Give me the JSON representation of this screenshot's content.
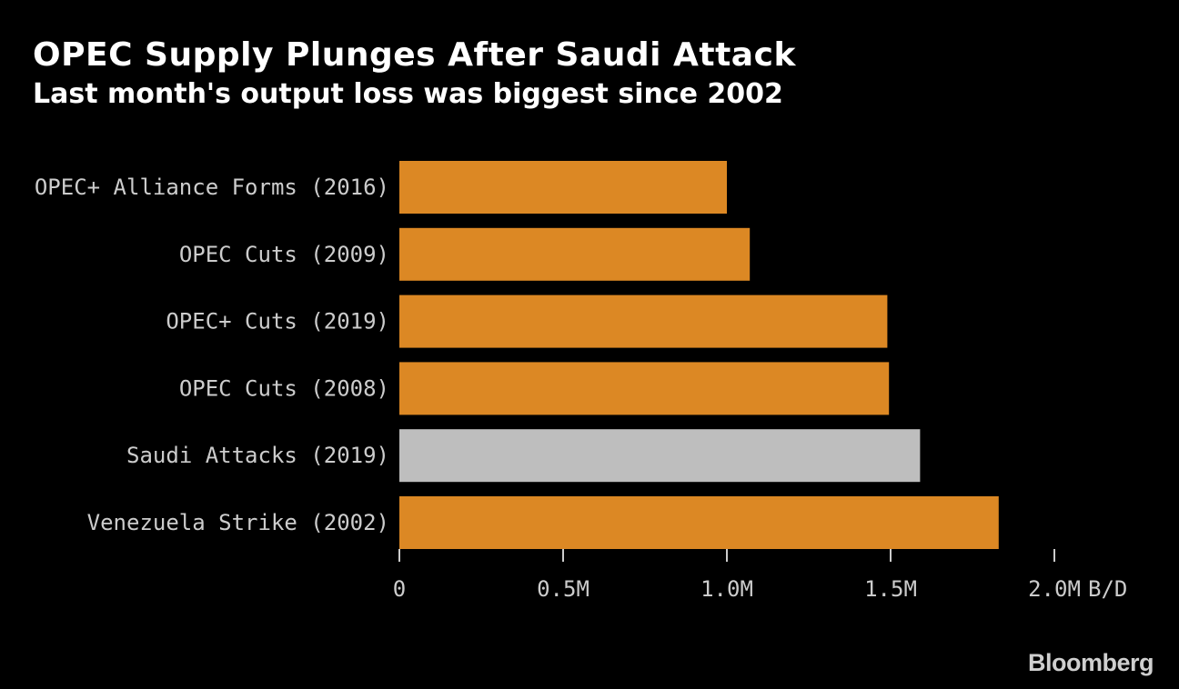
{
  "header": {
    "title": "OPEC Supply Plunges After Saudi Attack",
    "subtitle": "Last month's output loss was biggest since 2002"
  },
  "footer": {
    "brand": "Bloomberg"
  },
  "colors": {
    "background": "#000000",
    "bar_default": "#dc8824",
    "bar_highlight": "#bebebe",
    "text": "#cccccc",
    "axis": "#cccccc"
  },
  "chart_data": {
    "type": "bar",
    "orientation": "horizontal",
    "title": "OPEC Supply Plunges After Saudi Attack",
    "subtitle": "Last month's output loss was biggest since 2002",
    "xlabel": "B/D",
    "ylabel": "",
    "xlim": [
      0,
      2000000
    ],
    "grid": false,
    "categories": [
      "OPEC+ Alliance Forms (2016)",
      "OPEC Cuts (2009)",
      "OPEC+ Cuts (2019)",
      "OPEC Cuts (2008)",
      "Saudi Attacks (2019)",
      "Venezuela Strike (2002)"
    ],
    "values": [
      1000000,
      1070000,
      1490000,
      1495000,
      1590000,
      1830000
    ],
    "highlight": "Saudi Attacks (2019)",
    "x_ticks": [
      0,
      500000,
      1000000,
      1500000,
      2000000
    ],
    "x_tick_labels": [
      "0",
      "0.5M",
      "1.0M",
      "1.5M",
      "2.0M"
    ],
    "unit_label": "B/D"
  }
}
